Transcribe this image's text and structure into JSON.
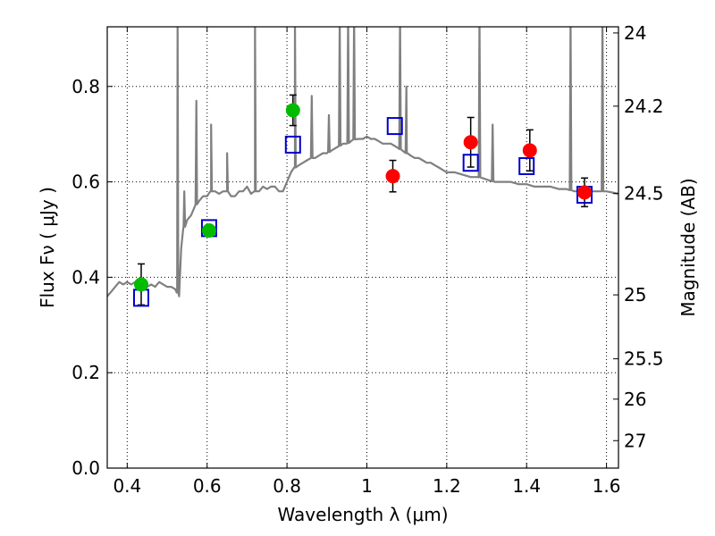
{
  "chart_data": {
    "type": "scatter",
    "xlabel": "Wavelength  λ (μm)",
    "ylabel": "Flux  Fν  ( μJy )",
    "y2label": "Magnitude (AB)",
    "xlim": [
      0.35,
      1.63
    ],
    "ylim": [
      0.0,
      0.925
    ],
    "grid": true,
    "x_ticks": [
      0.4,
      0.6,
      0.8,
      1.0,
      1.2,
      1.4,
      1.6
    ],
    "x_tick_labels": [
      "0.4",
      "0.6",
      "0.8",
      "1",
      "1.2",
      "1.4",
      "1.6"
    ],
    "y_ticks": [
      0.0,
      0.2,
      0.4,
      0.6,
      0.8
    ],
    "y_tick_labels": [
      "0.0",
      "0.2",
      "0.4",
      "0.6",
      "0.8"
    ],
    "y2_ticks": [
      24,
      24.2,
      24.5,
      25,
      25.5,
      26,
      27
    ],
    "y2_tick_labels": [
      "24",
      "24.2",
      "24.5",
      "25",
      "25.5",
      "26",
      "27"
    ],
    "colors": {
      "model": "#808080",
      "optical_points": "#00bb00",
      "nir_points": "#ff0000",
      "model_photometry": "#0000cc",
      "errorbar": "#000000"
    },
    "series": [
      {
        "kind": "model_spectrum",
        "x": [
          0.35,
          0.36,
          0.37,
          0.38,
          0.39,
          0.4,
          0.41,
          0.42,
          0.43,
          0.44,
          0.45,
          0.46,
          0.47,
          0.48,
          0.49,
          0.5,
          0.51,
          0.52,
          0.525,
          0.53,
          0.535,
          0.54,
          0.55,
          0.56,
          0.57,
          0.58,
          0.59,
          0.6,
          0.61,
          0.62,
          0.63,
          0.64,
          0.65,
          0.66,
          0.67,
          0.68,
          0.69,
          0.7,
          0.71,
          0.72,
          0.73,
          0.74,
          0.75,
          0.76,
          0.77,
          0.78,
          0.79,
          0.8,
          0.81,
          0.82,
          0.83,
          0.84,
          0.85,
          0.86,
          0.87,
          0.88,
          0.89,
          0.9,
          0.91,
          0.92,
          0.93,
          0.94,
          0.95,
          0.96,
          0.97,
          0.98,
          0.99,
          1.0,
          1.01,
          1.02,
          1.03,
          1.04,
          1.05,
          1.06,
          1.07,
          1.08,
          1.09,
          1.1,
          1.11,
          1.12,
          1.13,
          1.14,
          1.15,
          1.16,
          1.17,
          1.18,
          1.19,
          1.2,
          1.22,
          1.24,
          1.26,
          1.28,
          1.3,
          1.32,
          1.34,
          1.36,
          1.38,
          1.4,
          1.42,
          1.44,
          1.46,
          1.48,
          1.5,
          1.52,
          1.54,
          1.56,
          1.58,
          1.6,
          1.63
        ],
        "y": [
          0.36,
          0.37,
          0.38,
          0.39,
          0.385,
          0.39,
          0.385,
          0.39,
          0.385,
          0.39,
          0.38,
          0.385,
          0.38,
          0.39,
          0.385,
          0.38,
          0.38,
          0.375,
          0.37,
          0.36,
          0.46,
          0.5,
          0.52,
          0.53,
          0.55,
          0.56,
          0.57,
          0.57,
          0.58,
          0.58,
          0.575,
          0.58,
          0.58,
          0.57,
          0.57,
          0.58,
          0.58,
          0.59,
          0.575,
          0.58,
          0.58,
          0.59,
          0.585,
          0.59,
          0.59,
          0.58,
          0.58,
          0.6,
          0.62,
          0.63,
          0.635,
          0.64,
          0.645,
          0.65,
          0.65,
          0.655,
          0.66,
          0.66,
          0.665,
          0.67,
          0.675,
          0.68,
          0.68,
          0.685,
          0.69,
          0.69,
          0.69,
          0.695,
          0.69,
          0.69,
          0.685,
          0.68,
          0.68,
          0.68,
          0.675,
          0.67,
          0.665,
          0.66,
          0.655,
          0.65,
          0.65,
          0.645,
          0.64,
          0.64,
          0.635,
          0.63,
          0.625,
          0.62,
          0.62,
          0.615,
          0.61,
          0.61,
          0.605,
          0.6,
          0.6,
          0.6,
          0.595,
          0.595,
          0.59,
          0.59,
          0.59,
          0.585,
          0.585,
          0.58,
          0.58,
          0.58,
          0.58,
          0.58,
          0.575
        ]
      },
      {
        "kind": "model_spectrum_emission_lines",
        "x": [
          0.526,
          0.543,
          0.573,
          0.61,
          0.65,
          0.72,
          0.82,
          0.862,
          0.905,
          0.932,
          0.953,
          0.968,
          1.083,
          1.099,
          1.282,
          1.315,
          1.51,
          1.59
        ],
        "y": [
          0.95,
          0.58,
          0.77,
          0.72,
          0.66,
          0.95,
          0.95,
          0.78,
          0.74,
          0.95,
          0.95,
          0.95,
          0.95,
          0.8,
          0.95,
          0.72,
          0.95,
          0.95
        ]
      },
      {
        "kind": "observed_optical",
        "x": [
          0.435,
          0.605,
          0.815
        ],
        "y": [
          0.385,
          0.498,
          0.75
        ],
        "yerr": [
          0.043,
          0.012,
          0.032
        ]
      },
      {
        "kind": "observed_nir",
        "x": [
          1.065,
          1.26,
          1.408,
          1.545
        ],
        "y": [
          0.612,
          0.683,
          0.666,
          0.578
        ],
        "yerr": [
          0.033,
          0.052,
          0.043,
          0.03
        ]
      },
      {
        "kind": "model_photometry",
        "x": [
          0.435,
          0.605,
          0.815,
          1.07,
          1.26,
          1.4,
          1.545
        ],
        "y": [
          0.357,
          0.503,
          0.678,
          0.717,
          0.64,
          0.633,
          0.573
        ]
      }
    ]
  }
}
